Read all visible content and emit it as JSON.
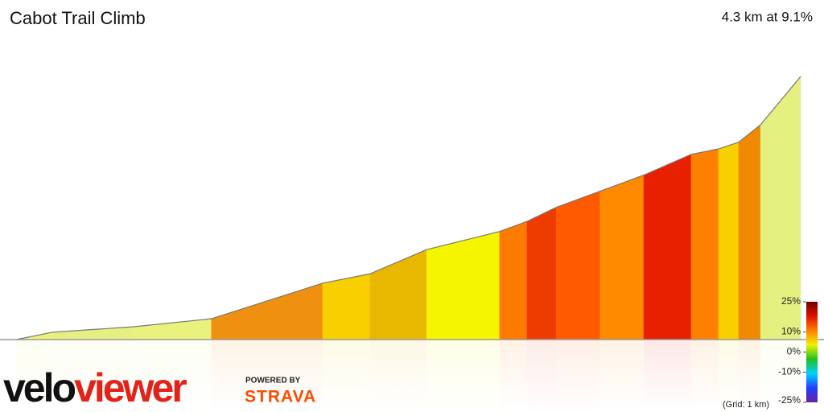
{
  "chart_data": {
    "type": "profile",
    "title": "Cabot Trail Climb",
    "summary": "4.3 km at 9.1%",
    "x": [
      0,
      0.2,
      0.64,
      1.07,
      1.68,
      1.94,
      2.25,
      2.65,
      2.8,
      2.96,
      3.2,
      3.44,
      3.7,
      3.85,
      3.96,
      4.08,
      4.3
    ],
    "elevation": [
      0,
      11,
      19,
      31,
      84,
      98,
      134,
      161,
      176,
      197,
      221,
      245,
      276,
      284,
      294,
      320,
      392
    ],
    "segment_colors": [
      "#eef07a",
      "#e6f080",
      "#eaf27e",
      "#f09010",
      "#f8d000",
      "#e8b800",
      "#f5f500",
      "#ff7a00",
      "#ee3c00",
      "#ff5a00",
      "#ff8a00",
      "#e82000",
      "#ff8000",
      "#f8d000",
      "#f08800",
      "#e4f080"
    ],
    "xlim": [
      0,
      4.3
    ],
    "ylim": [
      0,
      392
    ],
    "colorbar": {
      "ticks": [
        {
          "value": 25,
          "label": "25%"
        },
        {
          "value": 10,
          "label": "10%"
        },
        {
          "value": 0,
          "label": "0%"
        },
        {
          "value": -10,
          "label": "-10%"
        },
        {
          "value": -25,
          "label": "-25%"
        }
      ],
      "lim": [
        -25,
        25
      ],
      "colors": [
        "#6a1fa0",
        "#2040ff",
        "#00d0ff",
        "#20c020",
        "#f0f000",
        "#ff8000",
        "#e01000",
        "#700000"
      ]
    },
    "grid_note": "(Grid: 1 km)",
    "brand": {
      "velo": "velo",
      "viewer": "viewer",
      "powered": "POWERED BY",
      "strava": "STRAVA"
    }
  }
}
